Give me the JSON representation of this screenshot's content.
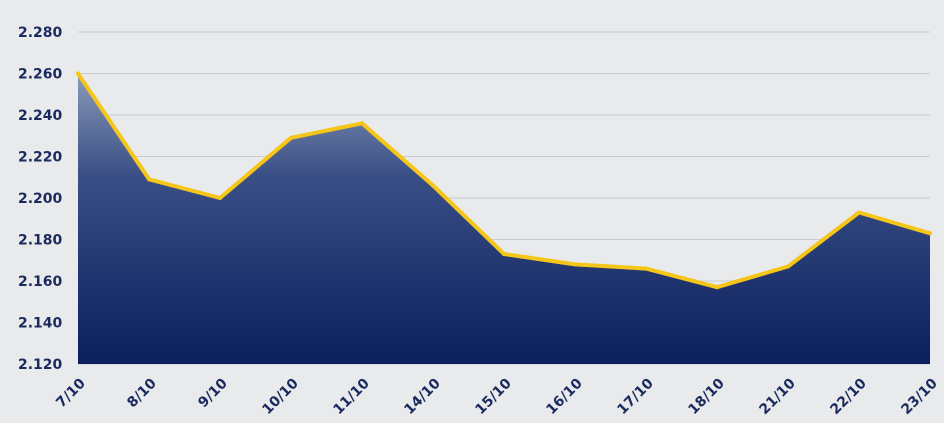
{
  "chart_data": {
    "type": "area",
    "categories": [
      "7/10",
      "8/10",
      "9/10",
      "10/10",
      "11/10",
      "14/10",
      "15/10",
      "16/10",
      "17/10",
      "18/10",
      "21/10",
      "22/10",
      "23/10"
    ],
    "series": [
      {
        "values": [
          2.26,
          2.209,
          2.2,
          2.229,
          2.236,
          2.206,
          2.173,
          2.168,
          2.166,
          2.157,
          2.167,
          2.193,
          2.183
        ]
      }
    ],
    "yticks": [
      "2.120",
      "2.140",
      "2.160",
      "2.180",
      "2.200",
      "2.220",
      "2.240",
      "2.260",
      "2.280"
    ],
    "ylim": [
      2.12,
      2.28
    ],
    "grid": true,
    "colors": {
      "line": "#f5c518",
      "fill_top": "#8a9ab8",
      "fill_bottom": "#0a1f5c",
      "tick_text": "#1a2a5e",
      "background": "#e9eaec"
    }
  }
}
